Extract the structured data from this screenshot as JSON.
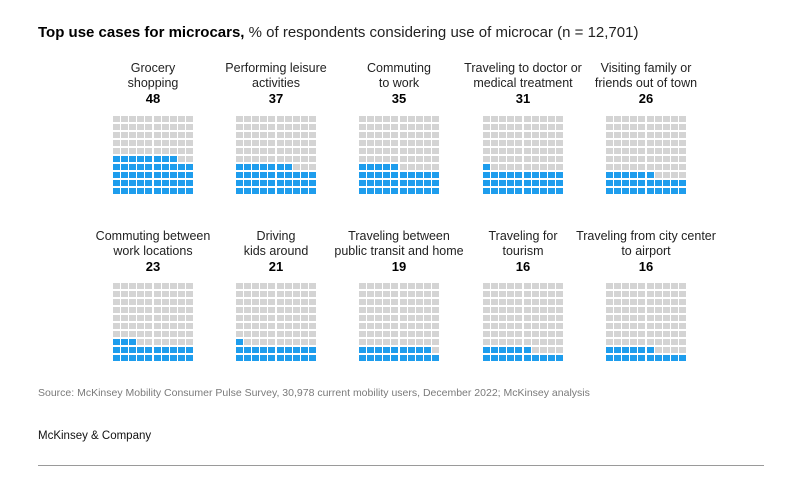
{
  "title": {
    "bold": "Top use cases for microcars,",
    "rest": " % of respondents considering use of microcar (n = 12,701)"
  },
  "chart_data": {
    "type": "waffle",
    "unit": "% of respondents considering use of microcar",
    "n": "12,701",
    "grid": {
      "rows": 10,
      "cols": 10,
      "total": 100
    },
    "colors": {
      "filled": "#1e9ded",
      "empty": "#d4d4d4"
    },
    "items": [
      {
        "label_lines": [
          "Grocery",
          "shopping"
        ],
        "value": 48
      },
      {
        "label_lines": [
          "Performing leisure",
          "activities"
        ],
        "value": 37
      },
      {
        "label_lines": [
          "Commuting",
          "to work"
        ],
        "value": 35
      },
      {
        "label_lines": [
          "Traveling to doctor or",
          "medical treatment"
        ],
        "value": 31
      },
      {
        "label_lines": [
          "Visiting family or",
          "friends out of town"
        ],
        "value": 26
      },
      {
        "label_lines": [
          "Commuting between",
          "work locations"
        ],
        "value": 23
      },
      {
        "label_lines": [
          "Driving",
          "kids around"
        ],
        "value": 21
      },
      {
        "label_lines": [
          "Traveling between",
          "public transit and home"
        ],
        "value": 19
      },
      {
        "label_lines": [
          "Traveling for",
          "tourism"
        ],
        "value": 16
      },
      {
        "label_lines": [
          "Traveling from city center",
          "to airport"
        ],
        "value": 16
      }
    ]
  },
  "footer": {
    "source": "Source: McKinsey Mobility Consumer Pulse Survey, 30,978 current mobility users, December 2022; McKinsey analysis",
    "brand": "McKinsey & Company"
  }
}
